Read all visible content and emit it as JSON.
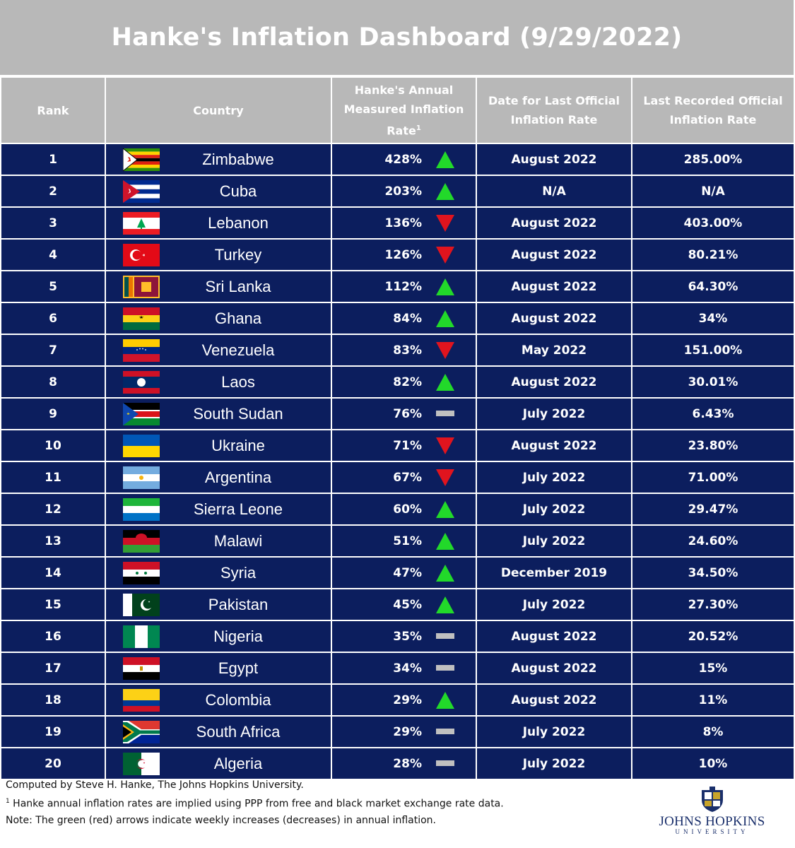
{
  "title": "Hanke's Inflation Dashboard (9/29/2022)",
  "headers": {
    "rank": "Rank",
    "country": "Country",
    "hanke_line1": "Hanke's Annual",
    "hanke_line2": "Measured Inflation",
    "hanke_line3": "Rate",
    "hanke_sup": "1",
    "date_line1": "Date for Last Official",
    "date_line2": "Inflation Rate",
    "official_line1": "Last Recorded Official",
    "official_line2": "Inflation Rate"
  },
  "rows": [
    {
      "rank": "1",
      "country": "Zimbabwe",
      "flag": "zimbabwe-flag",
      "hanke": "428%",
      "trend": "up",
      "date": "August 2022",
      "official": "285.00%"
    },
    {
      "rank": "2",
      "country": "Cuba",
      "flag": "cuba-flag",
      "hanke": "203%",
      "trend": "up",
      "date": "N/A",
      "official": "N/A"
    },
    {
      "rank": "3",
      "country": "Lebanon",
      "flag": "lebanon-flag",
      "hanke": "136%",
      "trend": "down",
      "date": "August 2022",
      "official": "403.00%"
    },
    {
      "rank": "4",
      "country": "Turkey",
      "flag": "turkey-flag",
      "hanke": "126%",
      "trend": "down",
      "date": "August 2022",
      "official": "80.21%"
    },
    {
      "rank": "5",
      "country": "Sri Lanka",
      "flag": "sri-lanka-flag",
      "hanke": "112%",
      "trend": "up",
      "date": "August 2022",
      "official": "64.30%"
    },
    {
      "rank": "6",
      "country": "Ghana",
      "flag": "ghana-flag",
      "hanke": "84%",
      "trend": "up",
      "date": "August 2022",
      "official": "34%"
    },
    {
      "rank": "7",
      "country": "Venezuela",
      "flag": "venezuela-flag",
      "hanke": "83%",
      "trend": "down",
      "date": "May 2022",
      "official": "151.00%"
    },
    {
      "rank": "8",
      "country": "Laos",
      "flag": "laos-flag",
      "hanke": "82%",
      "trend": "up",
      "date": "August 2022",
      "official": "30.01%"
    },
    {
      "rank": "9",
      "country": "South Sudan",
      "flag": "south-sudan-flag",
      "hanke": "76%",
      "trend": "flat",
      "date": "July 2022",
      "official": "6.43%"
    },
    {
      "rank": "10",
      "country": "Ukraine",
      "flag": "ukraine-flag",
      "hanke": "71%",
      "trend": "down",
      "date": "August 2022",
      "official": "23.80%"
    },
    {
      "rank": "11",
      "country": "Argentina",
      "flag": "argentina-flag",
      "hanke": "67%",
      "trend": "down",
      "date": "July 2022",
      "official": "71.00%"
    },
    {
      "rank": "12",
      "country": "Sierra Leone",
      "flag": "sierra-leone-flag",
      "hanke": "60%",
      "trend": "up",
      "date": "July 2022",
      "official": "29.47%"
    },
    {
      "rank": "13",
      "country": "Malawi",
      "flag": "malawi-flag",
      "hanke": "51%",
      "trend": "up",
      "date": "July 2022",
      "official": "24.60%"
    },
    {
      "rank": "14",
      "country": "Syria",
      "flag": "syria-flag",
      "hanke": "47%",
      "trend": "up",
      "date": "December 2019",
      "official": "34.50%"
    },
    {
      "rank": "15",
      "country": "Pakistan",
      "flag": "pakistan-flag",
      "hanke": "45%",
      "trend": "up",
      "date": "July 2022",
      "official": "27.30%"
    },
    {
      "rank": "16",
      "country": "Nigeria",
      "flag": "nigeria-flag",
      "hanke": "35%",
      "trend": "flat",
      "date": "August 2022",
      "official": "20.52%"
    },
    {
      "rank": "17",
      "country": "Egypt",
      "flag": "egypt-flag",
      "hanke": "34%",
      "trend": "flat",
      "date": "August 2022",
      "official": "15%"
    },
    {
      "rank": "18",
      "country": "Colombia",
      "flag": "colombia-flag",
      "hanke": "29%",
      "trend": "up",
      "date": "August 2022",
      "official": "11%"
    },
    {
      "rank": "19",
      "country": "South Africa",
      "flag": "south-africa-flag",
      "hanke": "29%",
      "trend": "flat",
      "date": "July 2022",
      "official": "8%"
    },
    {
      "rank": "20",
      "country": "Algeria",
      "flag": "algeria-flag",
      "hanke": "28%",
      "trend": "flat",
      "date": "July 2022",
      "official": "10%"
    }
  ],
  "footer": {
    "line1": "Computed by Steve H. Hanke, The Johns Hopkins University.",
    "line2_sup": "1",
    "line2": " Hanke annual inflation rates are implied using PPP from free and black market exchange rate data.",
    "line3": "Note: The green (red) arrows indicate weekly increases (decreases) in annual inflation."
  },
  "logo": {
    "name": "JOHNS HOPKINS",
    "sub": "UNIVERSITY"
  },
  "colors": {
    "header_bg": "#b8b8b8",
    "row_bg": "#0c1e5e",
    "up_arrow": "#22d92a",
    "down_arrow": "#e0141e",
    "flat_bar": "#c0c0c0"
  }
}
